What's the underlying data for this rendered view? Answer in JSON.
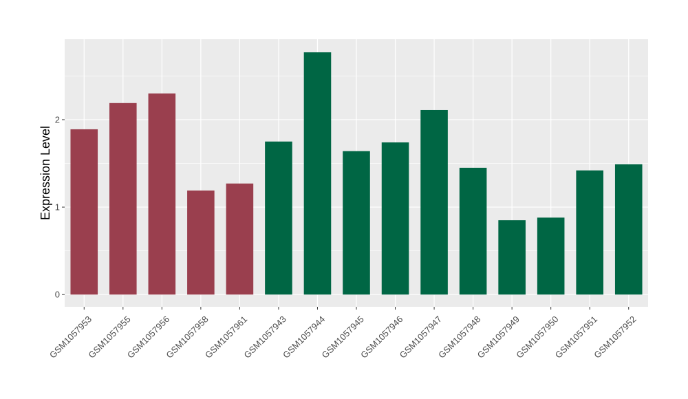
{
  "chart_data": {
    "type": "bar",
    "title": "",
    "xlabel": "",
    "ylabel": "Expression Level",
    "categories": [
      "GSM1057953",
      "GSM1057955",
      "GSM1057956",
      "GSM1057958",
      "GSM1057961",
      "GSM1057943",
      "GSM1057944",
      "GSM1057945",
      "GSM1057946",
      "GSM1057947",
      "GSM1057948",
      "GSM1057949",
      "GSM1057950",
      "GSM1057951",
      "GSM1057952"
    ],
    "values": [
      1.89,
      2.19,
      2.3,
      1.19,
      1.27,
      1.75,
      2.77,
      1.64,
      1.74,
      2.11,
      1.45,
      0.85,
      0.88,
      1.42,
      1.49
    ],
    "bar_colors": [
      "#9a3f4e",
      "#9a3f4e",
      "#9a3f4e",
      "#9a3f4e",
      "#9a3f4e",
      "#006644",
      "#006644",
      "#006644",
      "#006644",
      "#006644",
      "#006644",
      "#006644",
      "#006644",
      "#006644",
      "#006644"
    ],
    "ylim": [
      -0.14,
      2.92
    ],
    "yticks": [
      0,
      1,
      2
    ],
    "ytick_labels": [
      "0",
      "1",
      "2"
    ],
    "grid": true,
    "legend": "none",
    "panel_background": "#ebebeb",
    "grid_color": "#ffffff"
  }
}
